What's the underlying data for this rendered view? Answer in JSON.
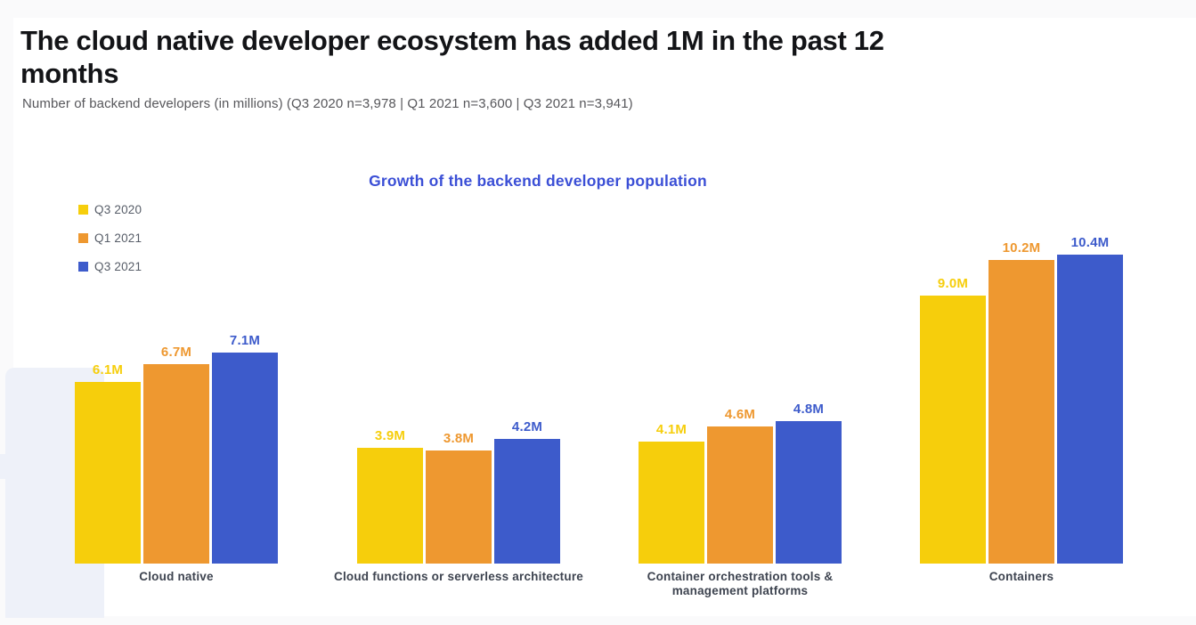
{
  "page": {
    "title": "The cloud native developer ecosystem has added 1M in the past 12\nmonths",
    "subtitle": "Number of backend developers (in millions) (Q3 2020 n=3,978 | Q1 2021 n=3,600 | Q3 2021 n=3,941)"
  },
  "colors": {
    "background_band": "#fafafb",
    "card": "#ffffff",
    "watermark": "#eef1f9",
    "chart_title": "#3b4fd6",
    "category_label": "#3e4450",
    "legend_text": "#575d68",
    "title_text": "#131417",
    "subtitle_text": "#57575b"
  },
  "chart_data": {
    "type": "bar",
    "title": "Growth of the backend developer population",
    "categories": [
      "Cloud native",
      "Cloud functions or serverless architecture",
      "Container orchestration tools &\nmanagement platforms",
      "Containers"
    ],
    "series": [
      {
        "name": "Q3 2020",
        "color": "#f6ce0c",
        "values": [
          6.1,
          3.9,
          4.1,
          9.0
        ]
      },
      {
        "name": "Q1 2021",
        "color": "#ee9830",
        "values": [
          6.7,
          3.8,
          4.6,
          10.2
        ]
      },
      {
        "name": "Q3 2021",
        "color": "#3d5bcb",
        "values": [
          7.1,
          4.2,
          4.8,
          10.4
        ]
      }
    ],
    "value_labels": [
      [
        "6.1M",
        "3.9M",
        "4.1M",
        "9.0M"
      ],
      [
        "6.7M",
        "3.8M",
        "4.6M",
        "10.2M"
      ],
      [
        "7.1M",
        "4.2M",
        "4.8M",
        "10.4M"
      ]
    ],
    "patterned_category_index": 3,
    "pattern": "white-dots",
    "legend_position": "top-left",
    "grid": false,
    "unit": "millions",
    "ylabel": "",
    "xlabel": ""
  }
}
